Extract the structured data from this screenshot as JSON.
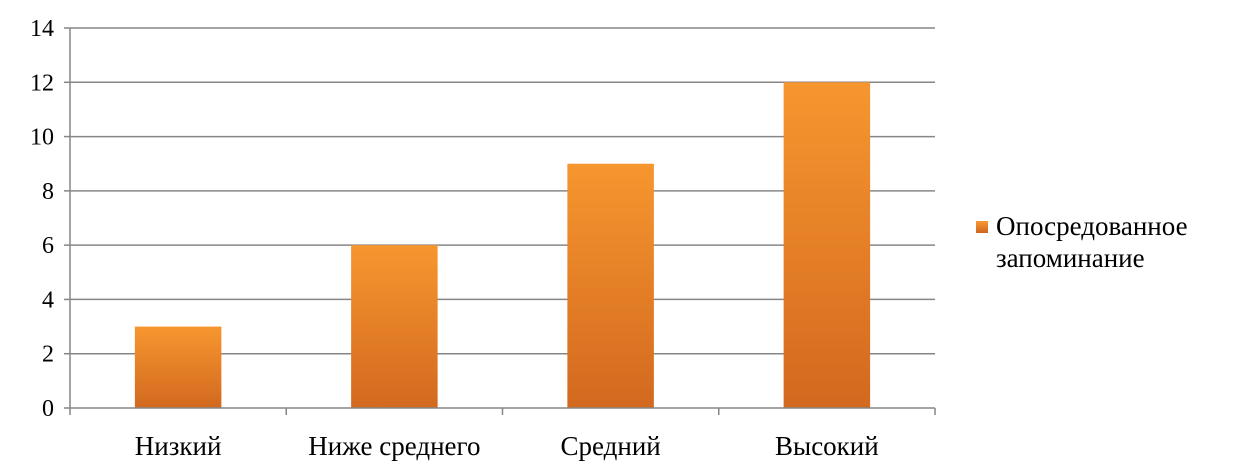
{
  "chart_data": {
    "type": "bar",
    "categories": [
      "Низкий",
      "Ниже среднего",
      "Средний",
      "Высокий"
    ],
    "series": [
      {
        "name": "Опосредованное запоминание",
        "values": [
          3,
          6,
          9,
          12
        ]
      }
    ],
    "ylim": [
      0,
      14
    ],
    "yticks": [
      0,
      2,
      4,
      6,
      8,
      10,
      12,
      14
    ],
    "grid": true,
    "legend_position": "right",
    "bar_color_top": "#f7962f",
    "bar_color_bottom": "#d2691f",
    "grid_color": "#868686"
  },
  "legend": {
    "label": "Опосредованное запоминание"
  }
}
